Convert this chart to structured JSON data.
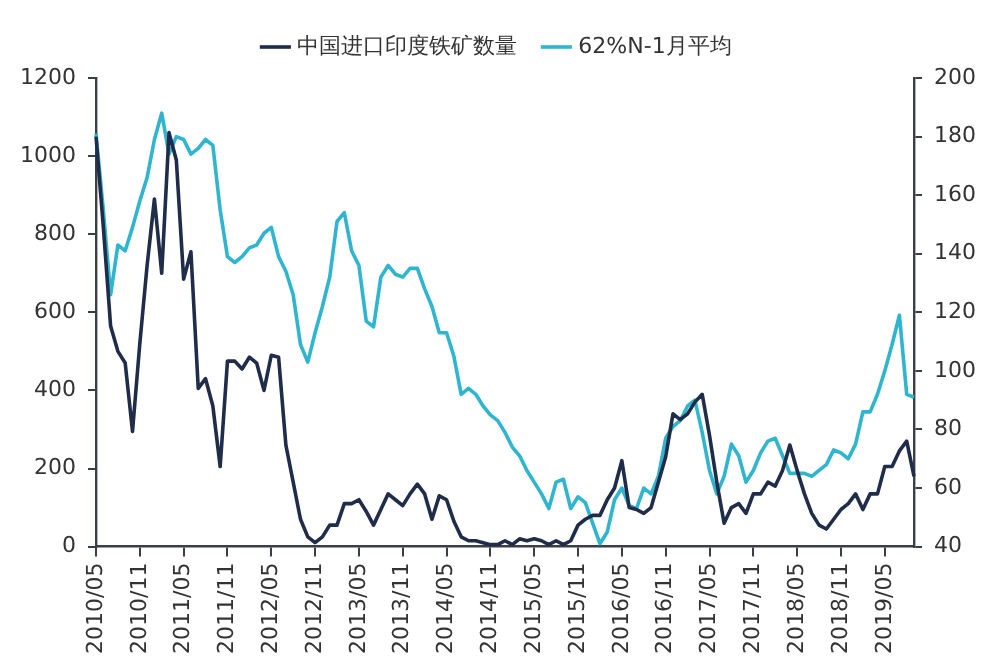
{
  "chart_data": {
    "type": "line",
    "categories": [
      "2010/05",
      null,
      null,
      null,
      null,
      null,
      "2010/11",
      null,
      null,
      null,
      null,
      null,
      "2011/05",
      null,
      null,
      null,
      null,
      null,
      "2011/11",
      null,
      null,
      null,
      null,
      null,
      "2012/05",
      null,
      null,
      null,
      null,
      null,
      "2012/11",
      null,
      null,
      null,
      null,
      null,
      "2013/05",
      null,
      null,
      null,
      null,
      null,
      "2013/11",
      null,
      null,
      null,
      null,
      null,
      "2014/05",
      null,
      null,
      null,
      null,
      null,
      "2014/11",
      null,
      null,
      null,
      null,
      null,
      "2015/05",
      null,
      null,
      null,
      null,
      null,
      "2015/11",
      null,
      null,
      null,
      null,
      null,
      "2016/05",
      null,
      null,
      null,
      null,
      null,
      "2016/11",
      null,
      null,
      null,
      null,
      null,
      "2017/05",
      null,
      null,
      null,
      null,
      null,
      "2017/11",
      null,
      null,
      null,
      null,
      null,
      "2018/05",
      null,
      null,
      null,
      null,
      null,
      "2018/11",
      null,
      null,
      null,
      null,
      null,
      "2019/05",
      null,
      null,
      null,
      null
    ],
    "series": [
      {
        "name": "中国进口印度铁矿数量",
        "color": "#1f2d4a",
        "values": [
          1050,
          820,
          565,
          500,
          470,
          295,
          520,
          720,
          890,
          700,
          1060,
          990,
          685,
          755,
          405,
          430,
          360,
          205,
          475,
          475,
          455,
          485,
          470,
          400,
          490,
          485,
          260,
          165,
          70,
          25,
          10,
          25,
          55,
          55,
          110,
          110,
          120,
          90,
          55,
          95,
          135,
          120,
          105,
          135,
          160,
          135,
          70,
          130,
          120,
          65,
          25,
          15,
          15,
          10,
          5,
          5,
          15,
          5,
          20,
          15,
          20,
          15,
          5,
          15,
          5,
          15,
          55,
          70,
          80,
          80,
          120,
          150,
          220,
          100,
          95,
          85,
          100,
          165,
          230,
          340,
          325,
          340,
          370,
          390,
          285,
          165,
          60,
          100,
          110,
          85,
          135,
          135,
          165,
          155,
          195,
          260,
          195,
          135,
          85,
          55,
          45,
          70,
          95,
          110,
          135,
          95,
          135,
          135,
          205,
          205,
          245,
          270,
          180
        ]
      },
      {
        "name": "62%N-1月平均",
        "color": "#2fb5d0",
        "axis": "y2",
        "values": [
          181,
          155,
          126,
          143,
          141,
          149,
          158,
          166,
          179,
          188,
          174,
          180,
          179,
          174,
          176,
          179,
          177,
          155,
          139,
          137,
          139,
          142,
          143,
          147,
          149,
          139,
          134,
          126,
          109,
          103,
          113,
          122,
          132,
          151,
          154,
          141,
          136,
          117,
          115,
          132,
          136,
          133,
          132,
          135,
          135,
          128,
          122,
          113,
          113,
          105,
          92,
          94,
          92,
          88,
          85,
          83,
          79,
          74,
          71,
          66,
          62,
          58,
          53,
          62,
          63,
          53,
          57,
          55,
          48,
          41,
          45,
          56,
          60,
          54,
          53,
          60,
          58,
          64,
          77,
          81,
          83,
          88,
          90,
          79,
          66,
          58,
          64,
          75,
          71,
          62,
          66,
          72,
          76,
          77,
          71,
          65,
          65,
          65,
          64,
          66,
          68,
          73,
          72,
          70,
          75,
          86,
          86,
          92,
          100,
          109,
          119,
          92,
          91
        ]
      }
    ],
    "ylim": [
      0,
      1200
    ],
    "yticks": [
      0,
      200,
      400,
      600,
      800,
      1000,
      1200
    ],
    "y2lim": [
      40,
      200
    ],
    "y2ticks": [
      40,
      60,
      80,
      100,
      120,
      140,
      160,
      180,
      200
    ],
    "grid": false,
    "legend": "top",
    "marker": "none",
    "line_style": "solid"
  }
}
